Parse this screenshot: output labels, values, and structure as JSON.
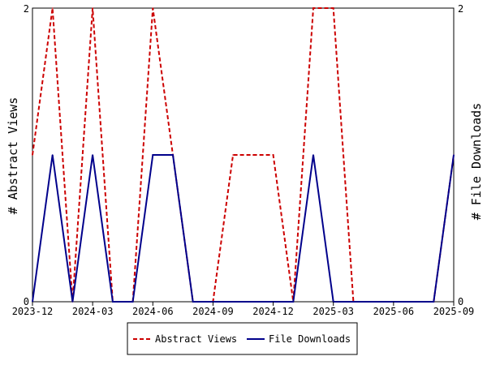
{
  "chart_data": {
    "type": "line",
    "title": "",
    "x": [
      "2023-12",
      "2024-01",
      "2024-02",
      "2024-03",
      "2024-04",
      "2024-05",
      "2024-06",
      "2024-07",
      "2024-08",
      "2024-09",
      "2024-10",
      "2024-11",
      "2024-12",
      "2025-01",
      "2025-02",
      "2025-03",
      "2025-04",
      "2025-05",
      "2025-06",
      "2025-07",
      "2025-08",
      "2025-09"
    ],
    "x_tick_labels": [
      "2023-12",
      "2024-03",
      "2024-06",
      "2024-09",
      "2024-12",
      "2025-03",
      "2025-06",
      "2025-09"
    ],
    "ylabel_left": "# Abstract Views",
    "ylabel_right": "# File Downloads",
    "ylim_left": [
      0,
      2
    ],
    "ylim_right": [
      0,
      2
    ],
    "y_tick_labels_left": [
      "0",
      "2"
    ],
    "y_tick_labels_right": [
      "0",
      "2"
    ],
    "grid": false,
    "legend_position": "bottom",
    "series": [
      {
        "name": "Abstract Views",
        "axis": "left",
        "style": "dashed",
        "color": "#cc0000",
        "values": [
          1,
          2,
          0,
          2,
          0,
          0,
          2,
          1,
          0,
          0,
          1,
          1,
          1,
          0,
          2,
          2,
          0,
          0,
          0,
          0,
          0,
          1
        ]
      },
      {
        "name": "File Downloads",
        "axis": "right",
        "style": "solid",
        "color": "#00008b",
        "values": [
          0,
          1,
          0,
          1,
          0,
          0,
          1,
          1,
          0,
          0,
          0,
          0,
          0,
          0,
          1,
          0,
          0,
          0,
          0,
          0,
          0,
          1
        ]
      }
    ]
  }
}
